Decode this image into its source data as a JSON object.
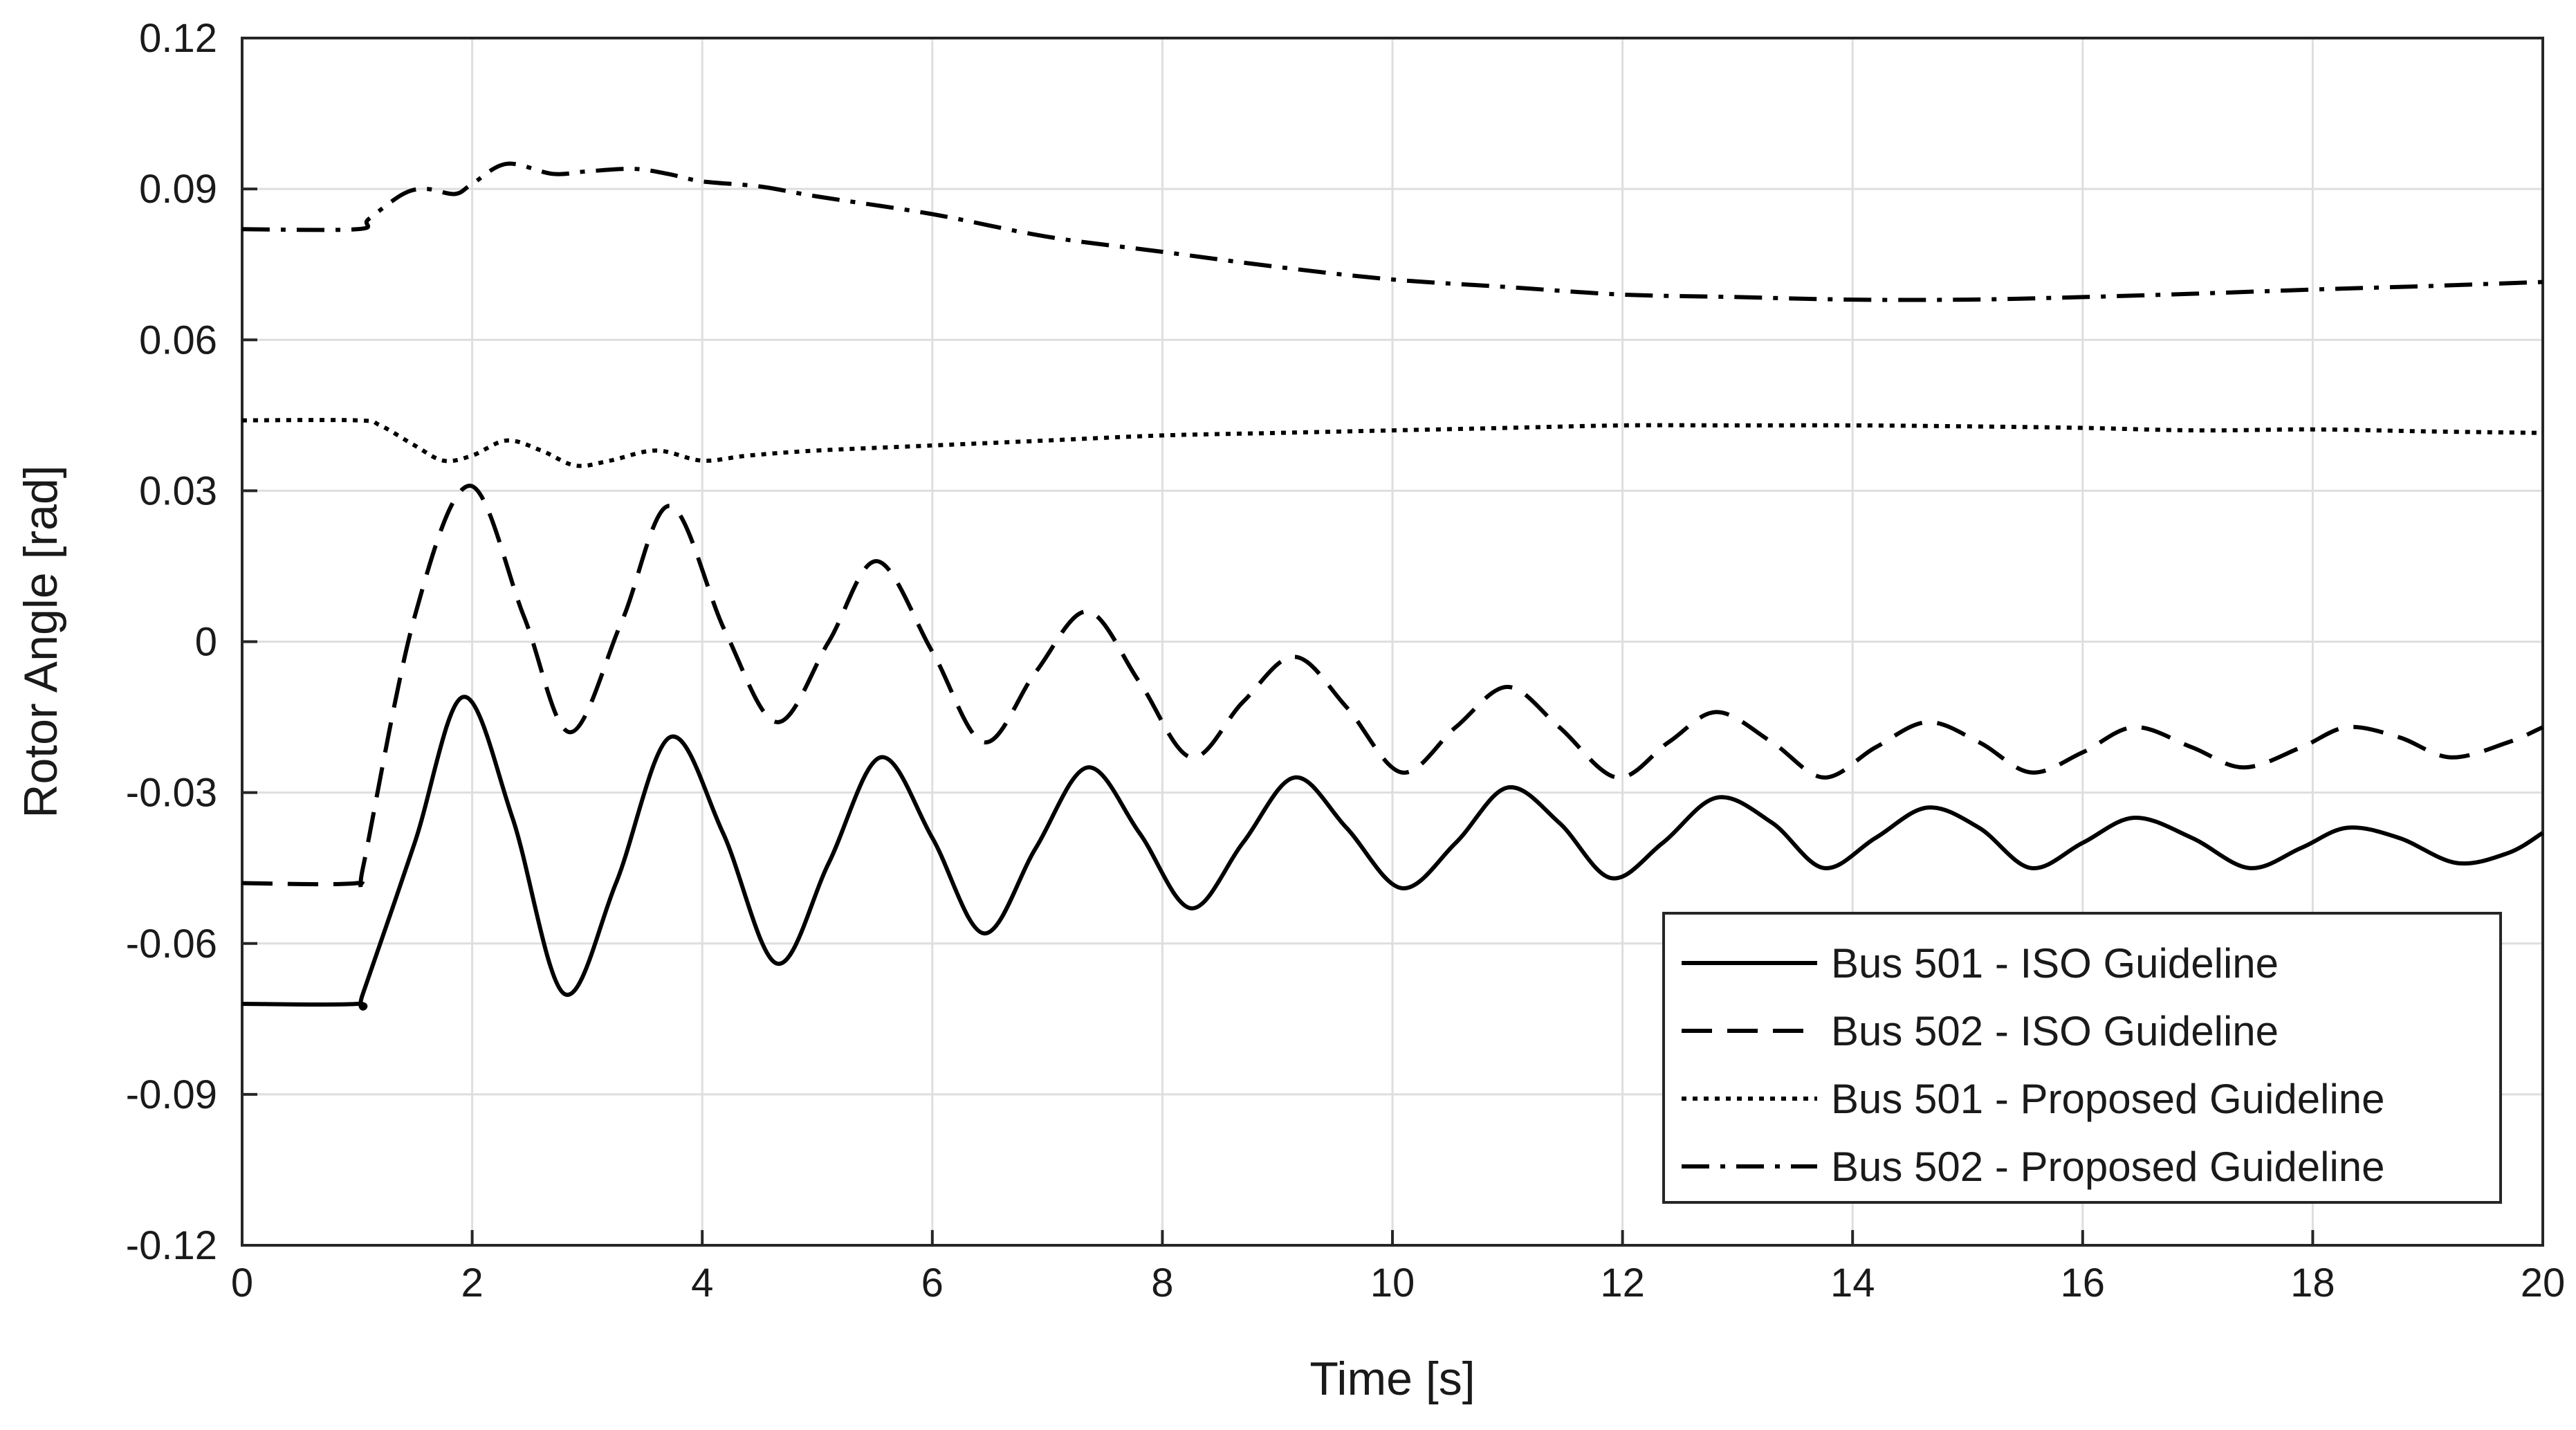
{
  "chart_data": {
    "type": "line",
    "title": "",
    "xlabel": "Time [s]",
    "ylabel": "Rotor Angle [rad]",
    "xlim": [
      0,
      20
    ],
    "ylim": [
      -0.12,
      0.12
    ],
    "xticks": [
      0,
      2,
      4,
      6,
      8,
      10,
      12,
      14,
      16,
      18,
      20
    ],
    "xtick_labels": [
      "0",
      "2",
      "4",
      "6",
      "8",
      "10",
      "12",
      "14",
      "16",
      "18",
      "20"
    ],
    "yticks": [
      0.12,
      0.09,
      0.06,
      0.03,
      0,
      -0.03,
      -0.06,
      -0.09,
      -0.12
    ],
    "ytick_labels": [
      "0.12",
      "0.09",
      "0.06",
      "0.03",
      "0",
      "-0.03",
      "-0.06",
      "-0.09",
      "-0.12"
    ],
    "grid": true,
    "legend_position": "bottom-right",
    "series": [
      {
        "name": "Bus 501 - ISO Guideline",
        "style": "solid",
        "color": "#000000",
        "x": [
          0,
          1,
          1.05,
          1.5,
          1.92,
          2.35,
          2.8,
          3.25,
          3.72,
          4.18,
          4.65,
          5.1,
          5.55,
          6.0,
          6.45,
          6.9,
          7.35,
          7.8,
          8.25,
          8.7,
          9.15,
          9.6,
          10.08,
          10.55,
          11.0,
          11.45,
          11.9,
          12.35,
          12.82,
          13.3,
          13.75,
          14.2,
          14.65,
          15.1,
          15.55,
          16.0,
          16.45,
          16.95,
          17.45,
          17.9,
          18.3,
          18.75,
          19.25,
          19.7,
          20.0
        ],
        "values": [
          -0.072,
          -0.072,
          -0.07,
          -0.04,
          -0.011,
          -0.035,
          -0.07,
          -0.048,
          -0.019,
          -0.038,
          -0.064,
          -0.044,
          -0.023,
          -0.039,
          -0.058,
          -0.041,
          -0.025,
          -0.038,
          -0.053,
          -0.04,
          -0.027,
          -0.037,
          -0.049,
          -0.04,
          -0.029,
          -0.036,
          -0.047,
          -0.04,
          -0.031,
          -0.036,
          -0.045,
          -0.039,
          -0.033,
          -0.037,
          -0.045,
          -0.04,
          -0.035,
          -0.039,
          -0.045,
          -0.041,
          -0.037,
          -0.039,
          -0.044,
          -0.042,
          -0.038
        ]
      },
      {
        "name": "Bus 502 - ISO Guideline",
        "style": "dashed",
        "color": "#000000",
        "x": [
          0,
          1,
          1.05,
          1.5,
          1.98,
          2.45,
          2.85,
          3.3,
          3.72,
          4.2,
          4.65,
          5.1,
          5.52,
          6.0,
          6.45,
          6.9,
          7.35,
          7.8,
          8.25,
          8.7,
          9.15,
          9.6,
          10.08,
          10.55,
          11.0,
          11.45,
          11.95,
          12.4,
          12.82,
          13.3,
          13.75,
          14.2,
          14.65,
          15.1,
          15.55,
          16.0,
          16.45,
          16.95,
          17.4,
          17.9,
          18.3,
          18.75,
          19.2,
          19.7,
          20.0
        ],
        "values": [
          -0.048,
          -0.048,
          -0.045,
          0.005,
          0.031,
          0.005,
          -0.018,
          0.004,
          0.027,
          0.002,
          -0.016,
          0.0,
          0.016,
          -0.002,
          -0.02,
          -0.006,
          0.006,
          -0.008,
          -0.023,
          -0.012,
          -0.003,
          -0.013,
          -0.026,
          -0.017,
          -0.009,
          -0.017,
          -0.027,
          -0.02,
          -0.014,
          -0.02,
          -0.027,
          -0.021,
          -0.016,
          -0.02,
          -0.026,
          -0.022,
          -0.017,
          -0.021,
          -0.025,
          -0.021,
          -0.017,
          -0.019,
          -0.023,
          -0.02,
          -0.017
        ]
      },
      {
        "name": "Bus 501 - Proposed Guideline",
        "style": "dotted",
        "color": "#000000",
        "x": [
          0,
          1,
          1.2,
          1.5,
          1.75,
          2.0,
          2.3,
          2.6,
          2.9,
          3.2,
          3.6,
          4.0,
          4.4,
          5.0,
          6.0,
          7.0,
          8.0,
          9.0,
          10.0,
          11.0,
          12.0,
          13.0,
          14.0,
          15.0,
          16.0,
          17.0,
          18.0,
          19.0,
          20.0
        ],
        "values": [
          0.044,
          0.044,
          0.043,
          0.039,
          0.036,
          0.037,
          0.04,
          0.038,
          0.035,
          0.036,
          0.038,
          0.036,
          0.037,
          0.038,
          0.039,
          0.04,
          0.041,
          0.0415,
          0.042,
          0.0425,
          0.043,
          0.043,
          0.043,
          0.0428,
          0.0425,
          0.042,
          0.0422,
          0.0418,
          0.0415
        ]
      },
      {
        "name": "Bus 502 - Proposed Guideline",
        "style": "dashdot",
        "color": "#000000",
        "x": [
          0,
          1,
          1.1,
          1.4,
          1.6,
          1.85,
          2.0,
          2.3,
          2.7,
          3.0,
          3.4,
          3.7,
          4.0,
          4.5,
          5.0,
          6.0,
          7.0,
          8.0,
          9.0,
          10.0,
          11.0,
          12.0,
          13.0,
          14.0,
          15.0,
          16.0,
          17.0,
          18.0,
          19.0,
          20.0
        ],
        "values": [
          0.082,
          0.082,
          0.084,
          0.089,
          0.09,
          0.089,
          0.091,
          0.095,
          0.093,
          0.0935,
          0.094,
          0.093,
          0.0915,
          0.0905,
          0.0885,
          0.085,
          0.0805,
          0.0775,
          0.0745,
          0.072,
          0.0705,
          0.069,
          0.0685,
          0.068,
          0.068,
          0.0685,
          0.0692,
          0.07,
          0.0707,
          0.0715
        ]
      }
    ]
  }
}
